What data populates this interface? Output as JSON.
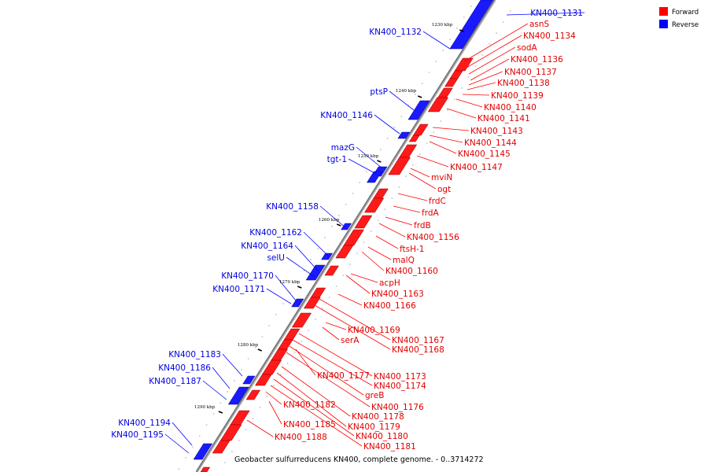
{
  "legend": {
    "forward_label": "Forward",
    "reverse_label": "Reverse",
    "forward_color": "#ff0000",
    "reverse_color": "#0000ff"
  },
  "caption": "Geobacter sulfurreducens KN400, complete genome. - 0..3714272",
  "backbone_color": "#888888",
  "kbp_labels": [
    "1230 kbp",
    "1240 kbp",
    "1250 kbp",
    "1260 kbp",
    "1270 kbp",
    "1280 kbp",
    "1290 kbp"
  ],
  "forward_labels": [
    "asnS",
    "KN400_1134",
    "sodA",
    "KN400_1136",
    "KN400_1137",
    "KN400_1138",
    "KN400_1139",
    "KN400_1140",
    "KN400_1141",
    "KN400_1143",
    "KN400_1144",
    "KN400_1145",
    "KN400_1147",
    "mviN",
    "ogt",
    "frdC",
    "frdA",
    "frdB",
    "KN400_1156",
    "ftsH-1",
    "malQ",
    "KN400_1160",
    "acpH",
    "KN400_1163",
    "KN400_1166",
    "KN400_1169",
    "serA",
    "KN400_1167",
    "KN400_1168",
    "KN400_1177",
    "KN400_1173",
    "KN400_1174",
    "greB",
    "KN400_1176",
    "KN400_1182",
    "KN400_1178",
    "KN400_1185",
    "KN400_1179",
    "KN400_1180",
    "KN400_1188",
    "KN400_1181"
  ],
  "reverse_labels": [
    "KN400_1131",
    "KN400_1132",
    "ptsP",
    "KN400_1146",
    "mazG",
    "tgt-1",
    "KN400_1158",
    "KN400_1162",
    "KN400_1164",
    "selU",
    "KN400_1170",
    "KN400_1171",
    "KN400_1183",
    "KN400_1186",
    "KN400_1187",
    "KN400_1194",
    "KN400_1195"
  ]
}
